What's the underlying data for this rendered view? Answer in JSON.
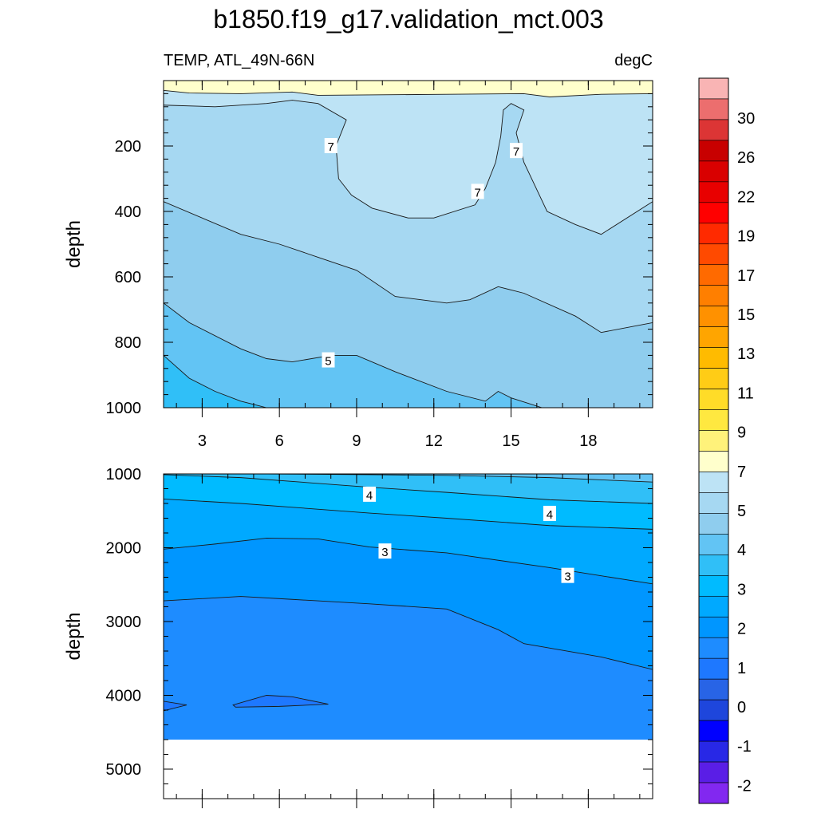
{
  "title": "b1850.f19_g17.validation_mct.003",
  "subtitle_left": "TEMP, ATL_49N-66N",
  "subtitle_right": "degC",
  "colorbar": {
    "labels": [
      "30",
      "26",
      "22",
      "19",
      "17",
      "15",
      "13",
      "11",
      "9",
      "7",
      "5",
      "4",
      "3",
      "2",
      "1",
      "0",
      "-1",
      "-2"
    ],
    "colors": [
      "#f9b4b4",
      "#ec6e6e",
      "#dc3535",
      "#c80000",
      "#d90000",
      "#e80000",
      "#ff0000",
      "#ff2a00",
      "#ff4a00",
      "#ff6a00",
      "#ff7f00",
      "#ff9100",
      "#ffa500",
      "#ffbb00",
      "#ffcc16",
      "#ffdc28",
      "#ffe840",
      "#fff27a",
      "#ffffcc",
      "#bde3f5",
      "#a6d8f2",
      "#8fcdee",
      "#62c4f4",
      "#30bff7",
      "#00bbff",
      "#00a9ff",
      "#0096ff",
      "#1e8cff",
      "#1e78ff",
      "#2864e6",
      "#1e46dc",
      "#0000ff",
      "#2828e6",
      "#5a1ee6",
      "#8228f0"
    ]
  },
  "chart_data": [
    {
      "type": "contour",
      "panel": "upper",
      "ylabel": "depth",
      "x_ticks": [
        3,
        6,
        9,
        12,
        15,
        18
      ],
      "xlim": [
        1.5,
        20.5
      ],
      "y_ticks": [
        200,
        400,
        600,
        800,
        1000
      ],
      "ylim": [
        0,
        1000
      ],
      "y_inverted": true,
      "contour_labels": [
        {
          "text": "7",
          "x": 8.0,
          "y": 200
        },
        {
          "text": "7",
          "x": 15.2,
          "y": 215
        },
        {
          "text": "7",
          "x": 13.7,
          "y": 340
        },
        {
          "text": "5",
          "x": 7.9,
          "y": 855
        }
      ],
      "bands": [
        {
          "color": "#ffffcc",
          "upper_boundary": [
            [
              1.5,
              0
            ],
            [
              20.5,
              0
            ]
          ]
        },
        {
          "color": "#bde3f5",
          "upper_boundary": [
            [
              1.5,
              30
            ],
            [
              2.5,
              38
            ],
            [
              4.5,
              40
            ],
            [
              6.5,
              35
            ],
            [
              7.5,
              45
            ],
            [
              12.5,
              42
            ],
            [
              15.5,
              40
            ],
            [
              16.5,
              50
            ],
            [
              18.5,
              42
            ],
            [
              20.5,
              40
            ]
          ]
        },
        {
          "color": "#a6d8f2",
          "upper_boundary": [
            [
              1.5,
              75
            ],
            [
              3.5,
              80
            ],
            [
              5.5,
              70
            ],
            [
              6.5,
              60
            ],
            [
              7.5,
              70
            ],
            [
              8.6,
              120
            ],
            [
              8.2,
              200
            ],
            [
              8.3,
              300
            ],
            [
              8.8,
              350
            ],
            [
              9.6,
              390
            ],
            [
              11,
              420
            ],
            [
              12,
              420
            ],
            [
              13.6,
              380
            ],
            [
              14,
              330
            ],
            [
              14.4,
              250
            ],
            [
              14.6,
              170
            ],
            [
              14.7,
              90
            ],
            [
              15,
              70
            ],
            [
              15.5,
              90
            ],
            [
              15.2,
              160
            ],
            [
              15.5,
              250
            ],
            [
              16.4,
              400
            ],
            [
              17.5,
              440
            ],
            [
              18.5,
              470
            ],
            [
              20.5,
              370
            ]
          ]
        },
        {
          "color": "#8fcdee",
          "upper_boundary": [
            [
              1.5,
              370
            ],
            [
              4.5,
              470
            ],
            [
              6,
              500
            ],
            [
              7.5,
              540
            ],
            [
              9,
              580
            ],
            [
              10.5,
              660
            ],
            [
              12.5,
              680
            ],
            [
              13.4,
              670
            ],
            [
              14.5,
              630
            ],
            [
              15.5,
              650
            ],
            [
              17.5,
              720
            ],
            [
              18.5,
              770
            ],
            [
              20.5,
              740
            ]
          ]
        },
        {
          "color": "#62c4f4",
          "upper_boundary": [
            [
              1.5,
              680
            ],
            [
              2.5,
              740
            ],
            [
              4.5,
              820
            ],
            [
              5.5,
              850
            ],
            [
              6.5,
              860
            ],
            [
              8,
              840
            ],
            [
              9,
              840
            ],
            [
              10.5,
              890
            ],
            [
              12.5,
              950
            ],
            [
              14,
              980
            ],
            [
              14.5,
              950
            ],
            [
              15,
              970
            ],
            [
              16.2,
              1000
            ]
          ]
        },
        {
          "color": "#30bff7",
          "upper_boundary": [
            [
              1.5,
              840
            ],
            [
              2.5,
              910
            ],
            [
              3.5,
              950
            ],
            [
              4.5,
              980
            ],
            [
              5.5,
              1000
            ]
          ]
        }
      ]
    },
    {
      "type": "contour",
      "panel": "lower",
      "ylabel": "depth",
      "y_ticks": [
        1000,
        2000,
        3000,
        4000,
        5000
      ],
      "ylim": [
        1000,
        5400
      ],
      "y_inverted": true,
      "ocean_floor": 4600,
      "contour_labels": [
        {
          "text": "4",
          "x": 9.5,
          "y": 1280
        },
        {
          "text": "4",
          "x": 16.5,
          "y": 1540
        },
        {
          "text": "3",
          "x": 10.1,
          "y": 2050
        },
        {
          "text": "3",
          "x": 17.2,
          "y": 2380
        }
      ],
      "bands": [
        {
          "color": "#62c4f4",
          "upper_boundary": [
            [
              1.5,
              1000
            ],
            [
              20.5,
              1000
            ]
          ]
        },
        {
          "color": "#30bff7",
          "upper_boundary": [
            [
              5.5,
              1000
            ],
            [
              9.5,
              1010
            ],
            [
              12.5,
              1020
            ],
            [
              16.5,
              1050
            ],
            [
              20.5,
              1110
            ]
          ]
        },
        {
          "color": "#00bbff",
          "upper_boundary": [
            [
              1.5,
              1010
            ],
            [
              4.5,
              1050
            ],
            [
              9.5,
              1180
            ],
            [
              12.5,
              1250
            ],
            [
              16.5,
              1350
            ],
            [
              20.5,
              1400
            ]
          ]
        },
        {
          "color": "#00a9ff",
          "upper_boundary": [
            [
              1.5,
              1340
            ],
            [
              4.5,
              1400
            ],
            [
              9.5,
              1530
            ],
            [
              12.5,
              1600
            ],
            [
              16.5,
              1700
            ],
            [
              20.5,
              1750
            ]
          ]
        },
        {
          "color": "#0096ff",
          "upper_boundary": [
            [
              1.5,
              2020
            ],
            [
              3.5,
              1950
            ],
            [
              5.5,
              1870
            ],
            [
              7.5,
              1880
            ],
            [
              9.5,
              1990
            ],
            [
              12.5,
              2070
            ],
            [
              16.5,
              2270
            ],
            [
              20.5,
              2490
            ]
          ]
        },
        {
          "color": "#1e8cff",
          "upper_boundary": [
            [
              1.5,
              2720
            ],
            [
              4.5,
              2660
            ],
            [
              6.5,
              2700
            ],
            [
              9.5,
              2760
            ],
            [
              12.5,
              2830
            ],
            [
              14.5,
              3110
            ],
            [
              15.5,
              3300
            ],
            [
              18.5,
              3480
            ],
            [
              20.5,
              3650
            ]
          ]
        }
      ],
      "deep_patches": [
        {
          "color": "#1e78ff",
          "points": [
            [
              1.5,
              4080
            ],
            [
              2.4,
              4130
            ],
            [
              1.5,
              4210
            ]
          ]
        },
        {
          "color": "#1e78ff",
          "points": [
            [
              4.2,
              4130
            ],
            [
              5.5,
              4000
            ],
            [
              6.5,
              4020
            ],
            [
              7.9,
              4120
            ],
            [
              6,
              4150
            ],
            [
              4.3,
              4160
            ]
          ]
        }
      ]
    }
  ]
}
